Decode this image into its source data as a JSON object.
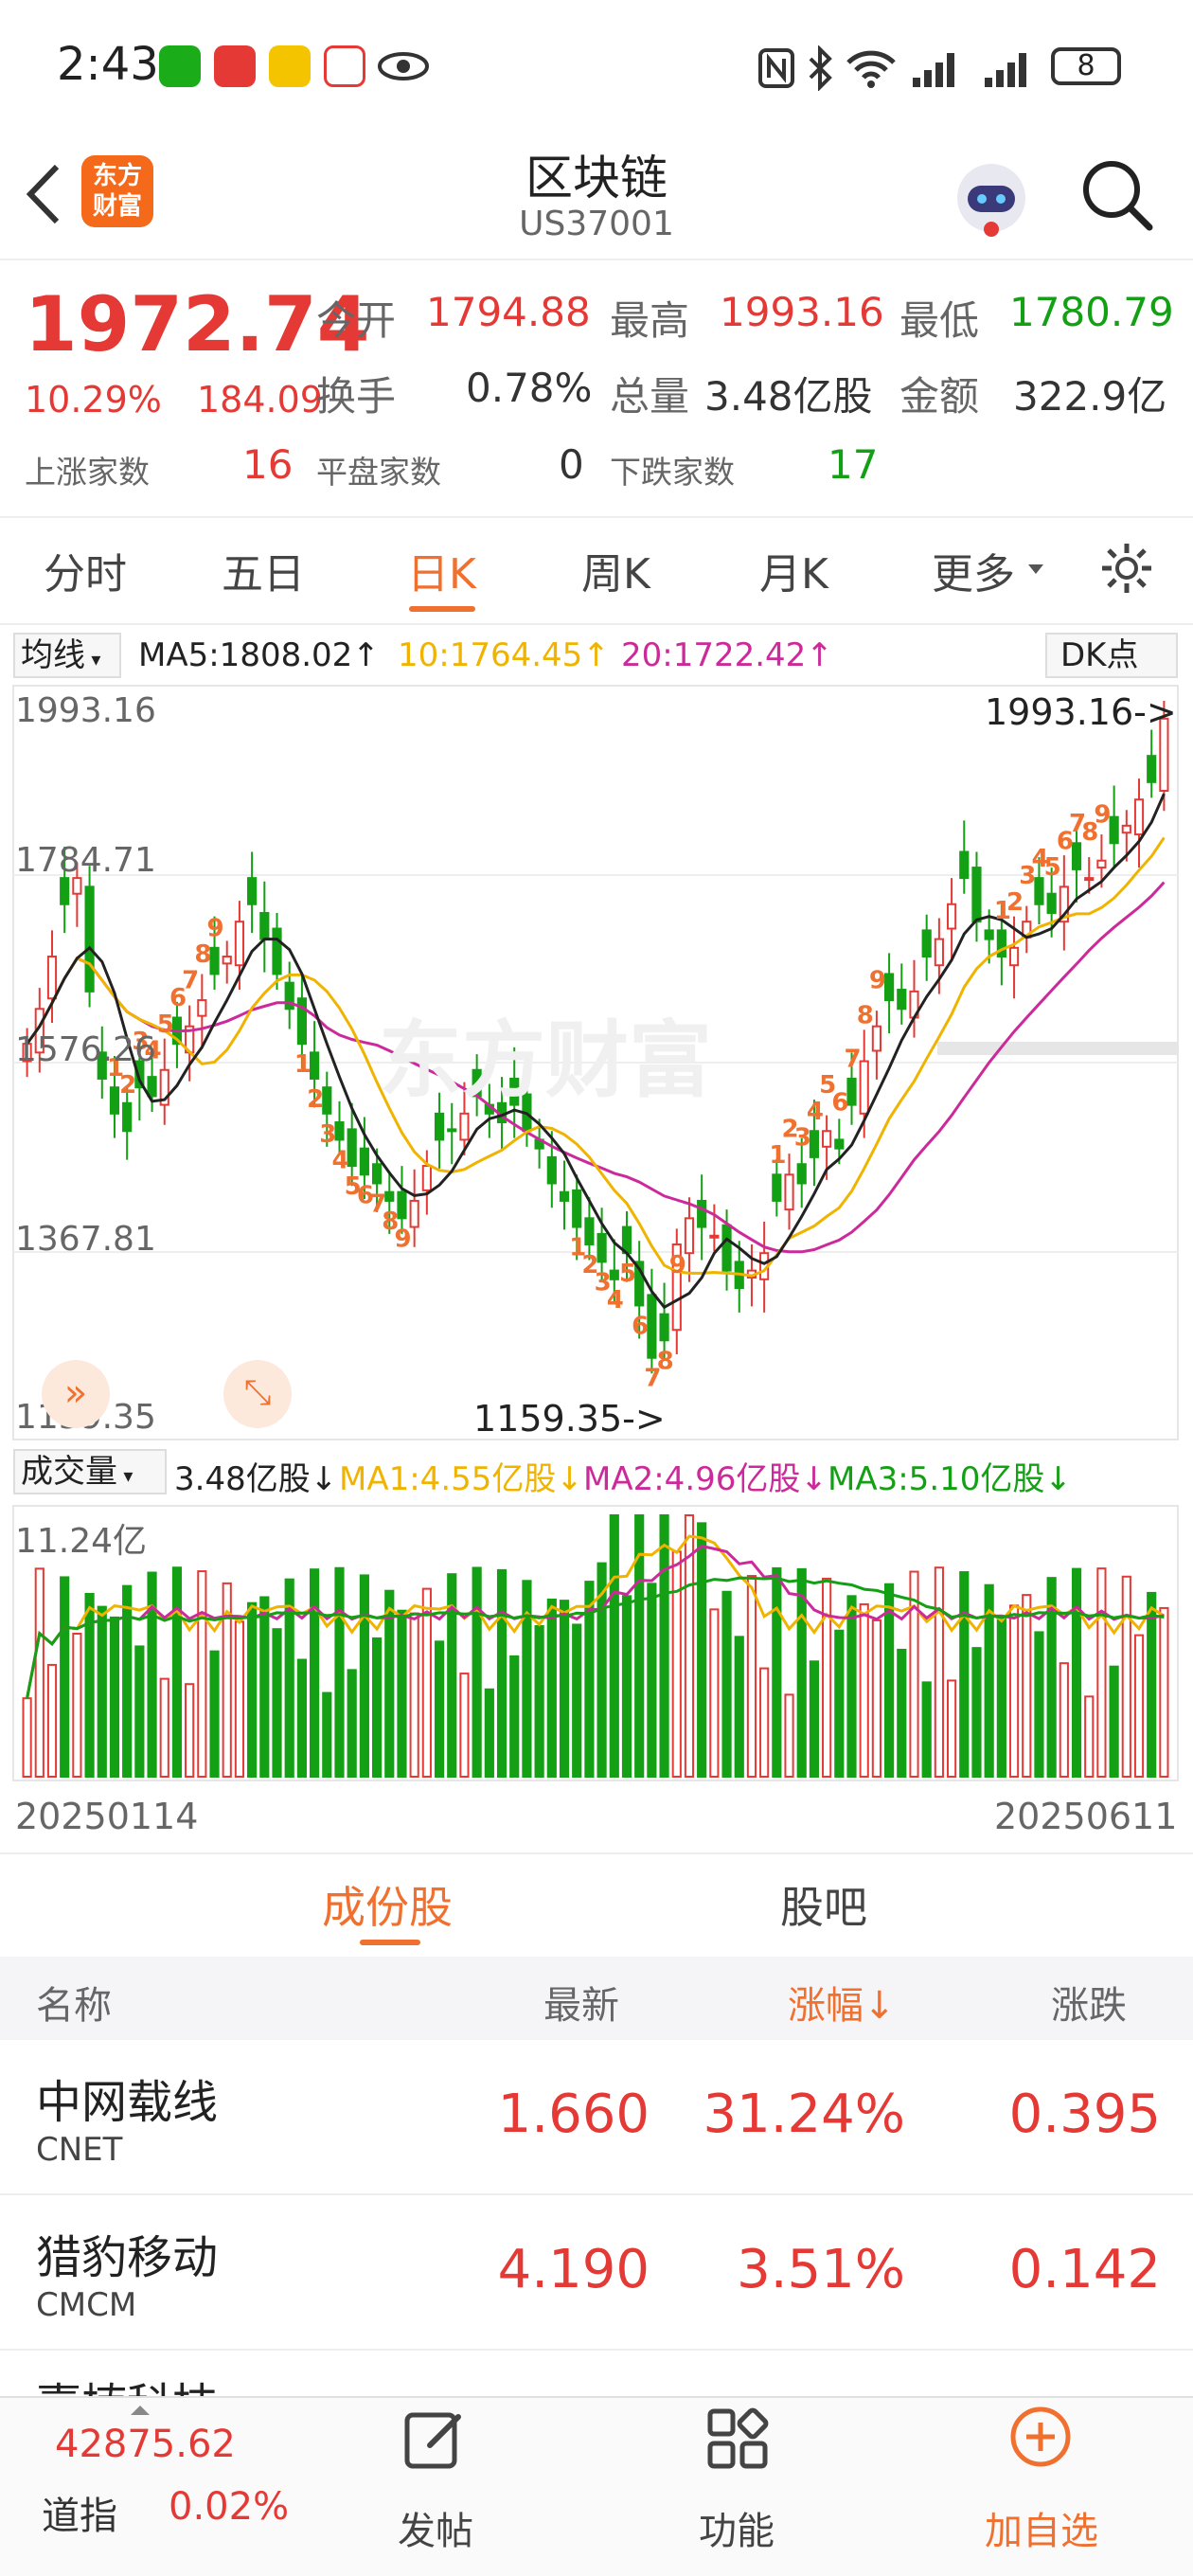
{
  "status_bar": {
    "time": "2:43",
    "battery": "8"
  },
  "header": {
    "title": "区块链",
    "code": "US37001",
    "logo_text": "东方财富"
  },
  "quote": {
    "price": "1972.74",
    "change_pct": "10.29%",
    "change": "184.09",
    "open_label": "今开",
    "open": "1794.88",
    "high_label": "最高",
    "high": "1993.16",
    "low_label": "最低",
    "low": "1780.79",
    "turnover_label": "换手",
    "turnover": "0.78%",
    "volume_label": "总量",
    "volume": "3.48亿股",
    "amount_label": "金额",
    "amount": "322.9亿",
    "up_label": "上涨家数",
    "up": "16",
    "flat_label": "平盘家数",
    "flat": "0",
    "down_label": "下跌家数",
    "down": "17"
  },
  "period_tabs": [
    "分时",
    "五日",
    "日K",
    "周K",
    "月K",
    "更多"
  ],
  "active_tab": "日K",
  "ma_bar": {
    "selector": "均线",
    "ma5": "MA5:1808.02↑",
    "ma10": "10:1764.45↑",
    "ma20": "20:1722.42↑",
    "dk_button": "DK点"
  },
  "price_axis": [
    "1993.16",
    "1784.71",
    "1576.26",
    "1367.81",
    "1159.35"
  ],
  "annotations": {
    "high": "1993.16->",
    "low": "1159.35->"
  },
  "watermark": "东方财富",
  "volume_bar": {
    "selector": "成交量",
    "vol": "3.48亿股↓",
    "ma1": "MA1:4.55亿股↓",
    "ma2": "MA2:4.96亿股↓",
    "ma3": "MA3:5.10亿股↓",
    "max": "11.24亿"
  },
  "date_range": {
    "start": "20250114",
    "end": "20250611"
  },
  "colors": {
    "up": "#e53935",
    "down": "#14a014",
    "accent": "#f07030",
    "ma5": "#222222",
    "ma10": "#f0b400",
    "ma20": "#cc2a9a"
  },
  "constituent_tabs": [
    "成份股",
    "股吧"
  ],
  "table": {
    "headers": [
      "名称",
      "最新",
      "涨幅↓",
      "涨跌"
    ],
    "rows": [
      {
        "name": "中网载线",
        "code": "CNET",
        "latest": "1.660",
        "pct": "31.24%",
        "chg": "0.395"
      },
      {
        "name": "猎豹移动",
        "code": "CMCM",
        "latest": "4.190",
        "pct": "3.51%",
        "chg": "0.142"
      },
      {
        "name": "嘉楠科技",
        "code": "",
        "latest": "",
        "pct": "",
        "chg": ""
      }
    ]
  },
  "bottom_nav": {
    "index_value": "42875.62",
    "index_name": "道指",
    "index_change": "0.02%",
    "post": "发帖",
    "functions": "功能",
    "add_watch": "加自选"
  },
  "chart_data": {
    "type": "candlestick",
    "x_range": [
      "20250114",
      "20250611"
    ],
    "ylim": [
      1159.35,
      1993.16
    ],
    "high": 1993.16,
    "low": 1159.35,
    "last_close": 1972.74,
    "moving_averages": {
      "MA5": 1808.02,
      "MA10": 1764.45,
      "MA20": 1722.42
    },
    "closes": [
      1600,
      1640,
      1700,
      1760,
      1790,
      1660,
      1560,
      1520,
      1500,
      1550,
      1540,
      1570,
      1600,
      1620,
      1650,
      1680,
      1700,
      1740,
      1760,
      1720,
      1680,
      1640,
      1600,
      1560,
      1520,
      1490,
      1460,
      1450,
      1440,
      1420,
      1400,
      1420,
      1460,
      1490,
      1500,
      1520,
      1540,
      1520,
      1510,
      1530,
      1500,
      1480,
      1440,
      1420,
      1390,
      1370,
      1350,
      1330,
      1360,
      1300,
      1240,
      1260,
      1370,
      1400,
      1390,
      1380,
      1340,
      1320,
      1340,
      1360,
      1420,
      1450,
      1440,
      1470,
      1500,
      1480,
      1530,
      1580,
      1620,
      1650,
      1640,
      1660,
      1700,
      1720,
      1760,
      1790,
      1740,
      1720,
      1700,
      1710,
      1740,
      1760,
      1750,
      1780,
      1800,
      1790,
      1810,
      1830,
      1850,
      1880,
      1900,
      1972.74
    ],
    "volume_max": "11.24亿"
  }
}
